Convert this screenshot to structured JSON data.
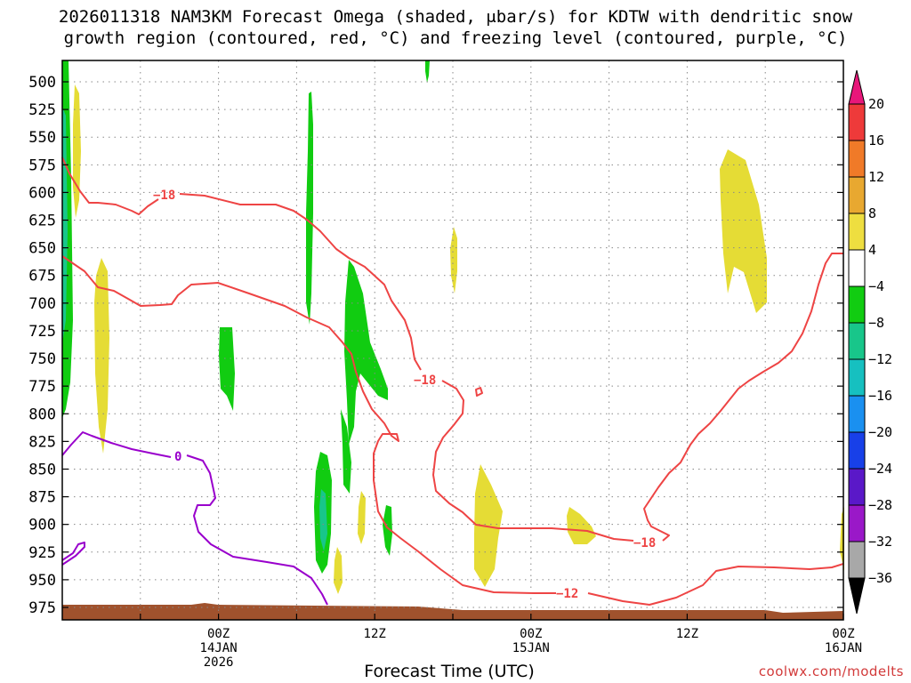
{
  "title": {
    "line1": "2026011318 NAM3KM Forecast Omega (shaded, μbar/s) for KDTW with dendritic snow",
    "line2": "growth region (contoured, red, °C) and freezing level (contoured, purple, °C)"
  },
  "footer": {
    "xlabel": "Forecast Time (UTC)",
    "credit": "coolwx.com/modelts"
  },
  "colors": {
    "dgz_contour": "#ee4444",
    "freezing_contour": "#9900cc",
    "terrain": "#a0522d",
    "grid": "#888888"
  },
  "chart_data": {
    "type": "time-height cross section",
    "model": "NAM3KM",
    "station": "KDTW",
    "init": "2026011318",
    "x_axis": {
      "unit": "forecast hour",
      "range": [
        -6,
        54
      ],
      "ticks": [
        {
          "hour": 6,
          "lines": [
            "00Z",
            "14JAN",
            "2026"
          ]
        },
        {
          "hour": 18,
          "lines": [
            "12Z"
          ]
        },
        {
          "hour": 30,
          "lines": [
            "00Z",
            "15JAN"
          ]
        },
        {
          "hour": 42,
          "lines": [
            "12Z"
          ]
        },
        {
          "hour": 54,
          "lines": [
            "00Z",
            "16JAN"
          ]
        }
      ]
    },
    "y_axis": {
      "unit": "hPa",
      "range": [
        975,
        485
      ],
      "labels": [
        "500",
        "525",
        "550",
        "575",
        "600",
        "625",
        "650",
        "675",
        "700",
        "725",
        "750",
        "775",
        "800",
        "825",
        "850",
        "875",
        "900",
        "925",
        "950",
        "975"
      ]
    },
    "colorbar": {
      "labels": [
        "20",
        "16",
        "12",
        "8",
        "4",
        "−4",
        "−8",
        "−12",
        "−16",
        "−20",
        "−24",
        "−28",
        "−32",
        "−36"
      ],
      "colors": [
        "#ee3a3a",
        "#f07a28",
        "#e8a830",
        "#eede40",
        "#ffffff",
        "#11cc11",
        "#18c68a",
        "#16c0c0",
        "#1a90f0",
        "#1840e8",
        "#5a18c8",
        "#9a18c8",
        "#a8a8a8"
      ],
      "top_arrow": "#e8177a",
      "bottom_arrow": "#000000"
    },
    "contour_labels": {
      "dgz": [
        "−18",
        "−18",
        "−18",
        "−12"
      ],
      "freezing": [
        "0"
      ]
    }
  }
}
